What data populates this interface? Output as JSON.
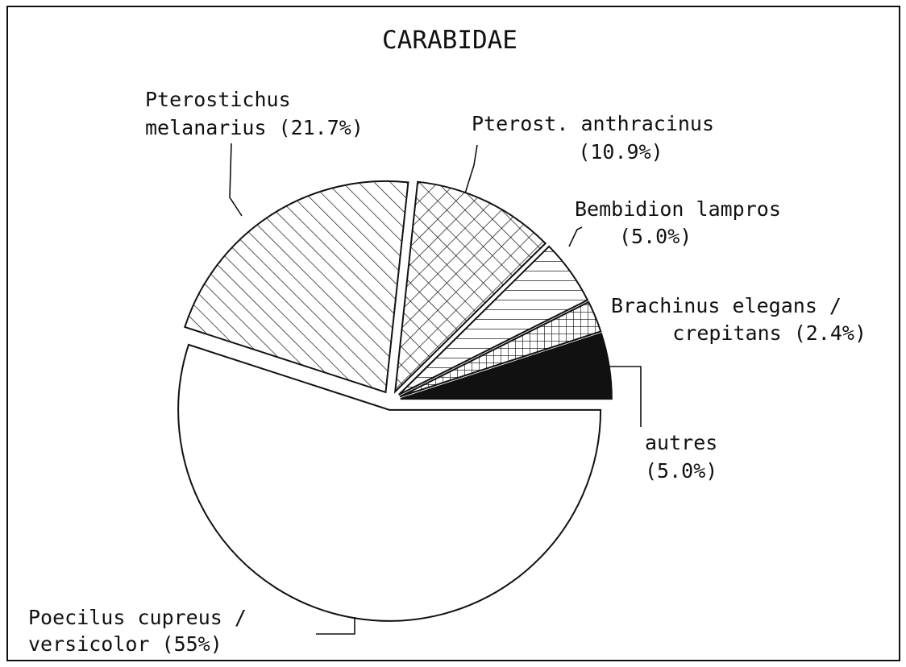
{
  "chart_data": {
    "type": "pie",
    "title": "CARABIDAE",
    "categories": [
      [
        "Pterostichus",
        "melanarius"
      ],
      [
        "Pterost. anthracinus"
      ],
      [
        "Bembidion lampros"
      ],
      [
        "Brachinus elegans /",
        "crepitans"
      ],
      [
        "autres"
      ],
      [
        "Poecilus cupreus /",
        "versicolor"
      ]
    ],
    "values": [
      21.7,
      10.9,
      5.0,
      2.4,
      5.0,
      55
    ],
    "value_labels": [
      "(21.7%)",
      "(10.9%)",
      "(5.0%)",
      "(2.4%)",
      "(5.0%)",
      "(55%)"
    ],
    "patterns": [
      "diagonal",
      "crosshatch",
      "horizontal",
      "grid",
      "solid",
      "none"
    ]
  }
}
